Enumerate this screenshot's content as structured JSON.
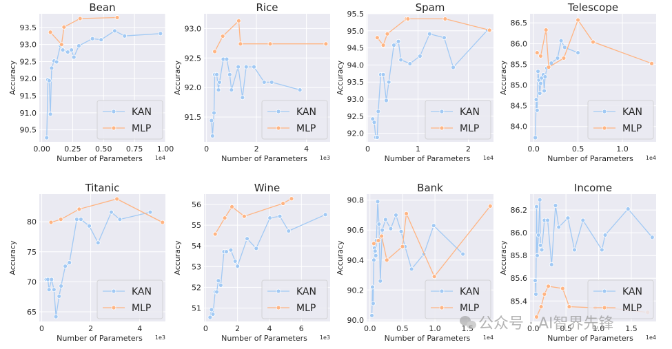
{
  "figure": {
    "colors": {
      "KAN": "#a1c9f4",
      "MLP": "#ffb482",
      "panel_bg": "#eaeaf2",
      "grid": "#ffffff",
      "text": "#262626"
    },
    "watermark": "公众号 · AI智界先锋"
  },
  "chart_data": [
    {
      "type": "line",
      "title": "Bean",
      "xlabel": "Number of Parameters",
      "ylabel": "Accuracy",
      "x_offset_label": "1e4",
      "xlim": [
        -0.02,
        1.0
      ],
      "ylim": [
        90.15,
        93.9
      ],
      "xticks": [
        0.0,
        0.25,
        0.5,
        0.75,
        1.0
      ],
      "xtick_labels": [
        "0.00",
        "0.25",
        "0.50",
        "0.75",
        "1.00"
      ],
      "yticks": [
        90.5,
        91.0,
        91.5,
        92.0,
        92.5,
        93.0,
        93.5
      ],
      "ytick_labels": [
        "90.5",
        "91.0",
        "91.5",
        "92.0",
        "92.5",
        "93.0",
        "93.5"
      ],
      "legend": [
        "KAN",
        "MLP"
      ],
      "legend_position": "lower-right",
      "grid": true,
      "series": [
        {
          "name": "KAN",
          "x": [
            0.04,
            0.05,
            0.06,
            0.07,
            0.08,
            0.1,
            0.12,
            0.15,
            0.17,
            0.21,
            0.24,
            0.26,
            0.3,
            0.41,
            0.48,
            0.59,
            0.67,
            0.96
          ],
          "y": [
            90.27,
            91.97,
            91.94,
            90.96,
            92.31,
            92.52,
            92.49,
            92.96,
            92.84,
            92.78,
            92.84,
            92.63,
            92.96,
            93.17,
            93.14,
            93.4,
            93.25,
            93.32
          ]
        },
        {
          "name": "MLP",
          "x": [
            0.07,
            0.16,
            0.18,
            0.31,
            0.61
          ],
          "y": [
            93.36,
            93.0,
            93.51,
            93.76,
            93.79
          ]
        }
      ]
    },
    {
      "type": "line",
      "title": "Rice",
      "xlabel": "Number of Parameters",
      "ylabel": "Accuracy",
      "x_offset_label": "1e3",
      "xlim": [
        -0.1,
        4.95
      ],
      "ylim": [
        91.08,
        93.25
      ],
      "xticks": [
        0,
        2,
        4
      ],
      "xtick_labels": [
        "0",
        "2",
        "4"
      ],
      "yticks": [
        91.5,
        92.0,
        92.5,
        93.0
      ],
      "ytick_labels": [
        "91.5",
        "92.0",
        "92.5",
        "93.0"
      ],
      "legend": [
        "KAN",
        "MLP"
      ],
      "legend_position": "lower-right",
      "grid": true,
      "series": [
        {
          "name": "KAN",
          "x": [
            0.2,
            0.24,
            0.3,
            0.33,
            0.41,
            0.48,
            0.52,
            0.67,
            0.81,
            0.93,
            1.0,
            1.27,
            1.44,
            1.59,
            1.9,
            2.31,
            2.61,
            3.74
          ],
          "y": [
            91.44,
            91.18,
            91.57,
            92.22,
            92.22,
            91.96,
            92.09,
            92.48,
            92.48,
            92.22,
            91.96,
            92.35,
            91.83,
            92.35,
            92.35,
            92.09,
            92.09,
            91.96
          ]
        },
        {
          "name": "MLP",
          "x": [
            0.33,
            0.65,
            1.29,
            1.36,
            2.55,
            4.78
          ],
          "y": [
            92.61,
            92.87,
            93.13,
            92.74,
            92.74,
            92.74
          ]
        }
      ]
    },
    {
      "type": "line",
      "title": "Spam",
      "xlabel": "Number of Parameters",
      "ylabel": "Accuracy",
      "x_offset_label": "1e4",
      "xlim": [
        -0.02,
        2.5
      ],
      "ylim": [
        91.75,
        95.5
      ],
      "xticks": [
        0,
        1,
        2
      ],
      "xtick_labels": [
        "0",
        "1",
        "2"
      ],
      "yticks": [
        92.0,
        92.5,
        93.0,
        93.5,
        94.0,
        94.5,
        95.0,
        95.5
      ],
      "ytick_labels": [
        "92.0",
        "92.5",
        "93.0",
        "93.5",
        "94.0",
        "94.5",
        "95.0",
        "95.5"
      ],
      "legend": [
        "KAN",
        "MLP"
      ],
      "legend_position": "lower-right",
      "grid": true,
      "series": [
        {
          "name": "KAN",
          "x": [
            0.1,
            0.13,
            0.16,
            0.19,
            0.21,
            0.26,
            0.31,
            0.37,
            0.42,
            0.52,
            0.61,
            0.66,
            0.84,
            1.04,
            1.23,
            1.52,
            1.7,
            2.38
          ],
          "y": [
            92.42,
            92.32,
            91.88,
            91.88,
            92.64,
            93.72,
            93.72,
            92.96,
            93.5,
            94.58,
            94.69,
            94.15,
            94.04,
            94.26,
            94.91,
            94.8,
            93.93,
            95.02
          ]
        },
        {
          "name": "MLP",
          "x": [
            0.19,
            0.31,
            0.39,
            0.77,
            0.8,
            1.54,
            2.42
          ],
          "y": [
            94.8,
            94.58,
            94.91,
            95.35,
            95.35,
            95.35,
            95.02
          ]
        }
      ]
    },
    {
      "type": "line",
      "title": "Telescope",
      "xlabel": "Number of Parameters",
      "ylabel": "Accuracy",
      "x_offset_label": "1e4",
      "xlim": [
        -0.04,
        1.38
      ],
      "ylim": [
        83.63,
        86.72
      ],
      "xticks": [
        0.0,
        0.5,
        1.0
      ],
      "xtick_labels": [
        "0.0",
        "0.5",
        "1.0"
      ],
      "yticks": [
        84.0,
        84.5,
        85.0,
        85.5,
        86.0,
        86.5
      ],
      "ytick_labels": [
        "84.0",
        "84.5",
        "85.0",
        "85.5",
        "86.0",
        "86.5"
      ],
      "legend": [
        "KAN",
        "MLP"
      ],
      "legend_position": "lower-right",
      "grid": true,
      "series": [
        {
          "name": "KAN",
          "x": [
            0.02,
            0.03,
            0.04,
            0.05,
            0.06,
            0.07,
            0.08,
            0.09,
            0.11,
            0.12,
            0.13,
            0.15,
            0.2,
            0.27,
            0.31,
            0.35,
            0.5
          ],
          "y": [
            83.73,
            84.65,
            84.39,
            85.33,
            85.12,
            84.8,
            85.04,
            85.17,
            85.25,
            84.86,
            85.2,
            85.41,
            85.53,
            85.65,
            86.07,
            85.91,
            85.78
          ]
        },
        {
          "name": "MLP",
          "x": [
            0.04,
            0.08,
            0.14,
            0.17,
            0.34,
            0.5,
            0.67,
            1.33
          ],
          "y": [
            85.78,
            85.7,
            86.33,
            85.43,
            85.65,
            86.57,
            86.04,
            85.52
          ]
        }
      ]
    },
    {
      "type": "line",
      "title": "Titanic",
      "xlabel": "Number of Parameters",
      "ylabel": "Accuracy",
      "x_offset_label": "1e3",
      "xlim": [
        -0.1,
        5.05
      ],
      "ylim": [
        63.4,
        84.6
      ],
      "xticks": [
        0,
        2,
        4
      ],
      "xtick_labels": [
        "0",
        "2",
        "4"
      ],
      "yticks": [
        65,
        70,
        75,
        80
      ],
      "ytick_labels": [
        "65",
        "70",
        "75",
        "80"
      ],
      "legend": [
        "KAN",
        "MLP"
      ],
      "legend_position": "lower-right",
      "grid": true,
      "series": [
        {
          "name": "KAN",
          "x": [
            0.18,
            0.25,
            0.3,
            0.4,
            0.5,
            0.58,
            0.71,
            0.79,
            0.96,
            1.13,
            1.43,
            1.6,
            1.94,
            2.3,
            2.84,
            3.19,
            4.43
          ],
          "y": [
            70.4,
            70.4,
            68.7,
            70.4,
            68.7,
            64.2,
            67.6,
            69.3,
            72.6,
            73.2,
            80.4,
            80.4,
            79.3,
            76.5,
            81.6,
            80.4,
            81.6
          ]
        },
        {
          "name": "MLP",
          "x": [
            0.38,
            0.78,
            1.53,
            3.07,
            4.93
          ],
          "y": [
            79.9,
            80.4,
            82.1,
            83.8,
            79.9
          ]
        }
      ]
    },
    {
      "type": "line",
      "title": "Wine",
      "xlabel": "Number of Parameters",
      "ylabel": "Accuracy",
      "x_offset_label": "1e3",
      "xlim": [
        -0.1,
        7.8
      ],
      "ylim": [
        50.35,
        56.5
      ],
      "xticks": [
        0,
        2,
        4,
        6
      ],
      "xtick_labels": [
        "0",
        "2",
        "4",
        "6"
      ],
      "yticks": [
        51,
        52,
        53,
        54,
        55,
        56
      ],
      "ytick_labels": [
        "51",
        "52",
        "53",
        "54",
        "55",
        "56"
      ],
      "legend": [
        "KAN",
        "MLP"
      ],
      "legend_position": "lower-right",
      "grid": true,
      "series": [
        {
          "name": "KAN",
          "x": [
            0.28,
            0.37,
            0.46,
            0.6,
            0.7,
            0.8,
            0.95,
            1.15,
            1.3,
            1.58,
            1.85,
            2.0,
            2.6,
            3.17,
            4.03,
            4.65,
            5.2,
            7.5
          ],
          "y": [
            50.55,
            50.92,
            50.7,
            51.78,
            51.78,
            52.32,
            52.1,
            53.72,
            53.72,
            53.8,
            53.26,
            53.02,
            54.35,
            53.88,
            55.35,
            55.43,
            54.72,
            55.51
          ]
        },
        {
          "name": "MLP",
          "x": [
            0.6,
            1.2,
            1.65,
            2.42,
            4.85,
            5.38
          ],
          "y": [
            54.57,
            55.35,
            55.89,
            55.43,
            56.05,
            56.28
          ]
        }
      ]
    },
    {
      "type": "line",
      "title": "Bank",
      "xlabel": "Number of Parameters",
      "ylabel": "Accuracy",
      "x_offset_label": "1e4",
      "xlim": [
        -0.05,
        1.9
      ],
      "ylim": [
        89.99,
        90.84
      ],
      "xticks": [
        0.0,
        0.5,
        1.0,
        1.5
      ],
      "xtick_labels": [
        "0.0",
        "0.5",
        "1.0",
        "1.5"
      ],
      "yticks": [
        90.0,
        90.2,
        90.4,
        90.6,
        90.8
      ],
      "ytick_labels": [
        "90.0",
        "90.2",
        "90.4",
        "90.6",
        "90.8"
      ],
      "legend": [
        "KAN",
        "MLP"
      ],
      "legend_position": "lower-right",
      "grid": true,
      "series": [
        {
          "name": "KAN",
          "x": [
            0.03,
            0.04,
            0.05,
            0.06,
            0.07,
            0.08,
            0.09,
            0.1,
            0.12,
            0.14,
            0.16,
            0.19,
            0.24,
            0.32,
            0.4,
            0.48,
            0.54,
            0.64,
            0.83,
            0.98,
            1.43
          ],
          "y": [
            90.03,
            90.22,
            90.11,
            90.4,
            90.48,
            90.46,
            90.43,
            90.53,
            90.79,
            90.64,
            90.26,
            90.6,
            90.67,
            90.61,
            90.7,
            90.59,
            90.49,
            90.34,
            90.44,
            90.63,
            90.44
          ]
        },
        {
          "name": "MLP",
          "x": [
            0.06,
            0.13,
            0.18,
            0.26,
            0.5,
            0.56,
            0.99,
            1.85
          ],
          "y": [
            90.51,
            90.53,
            90.56,
            90.4,
            90.49,
            90.71,
            90.29,
            90.76
          ]
        }
      ]
    },
    {
      "type": "line",
      "title": "Income",
      "xlabel": "Number of Parameters",
      "ylabel": "Accuracy",
      "x_offset_label": "1e4",
      "xlim": [
        -0.05,
        1.88
      ],
      "ylim": [
        85.22,
        86.34
      ],
      "xticks": [
        0.0,
        0.5,
        1.0,
        1.5
      ],
      "xtick_labels": [
        "0.0",
        "0.5",
        "1.0",
        "1.5"
      ],
      "yticks": [
        85.4,
        85.6,
        85.8,
        86.0,
        86.2
      ],
      "ytick_labels": [
        "85.4",
        "85.6",
        "85.8",
        "86.0",
        "86.2"
      ],
      "legend": [
        "KAN",
        "MLP"
      ],
      "legend_position": "lower-right",
      "grid": true,
      "series": [
        {
          "name": "KAN",
          "x": [
            0.03,
            0.04,
            0.05,
            0.06,
            0.08,
            0.1,
            0.11,
            0.13,
            0.17,
            0.22,
            0.28,
            0.34,
            0.39,
            0.53,
            0.63,
            0.76,
            1.05,
            1.1,
            1.45,
            1.82
          ],
          "y": [
            85.58,
            85.46,
            86.23,
            85.8,
            85.98,
            86.29,
            85.89,
            85.85,
            86.11,
            86.11,
            85.72,
            86.24,
            86.05,
            86.13,
            85.85,
            86.11,
            85.85,
            85.98,
            86.21,
            85.96
          ]
        },
        {
          "name": "MLP",
          "x": [
            0.05,
            0.12,
            0.17,
            0.23,
            0.45,
            0.55,
            0.95,
            1.12,
            1.75
          ],
          "y": [
            85.26,
            85.35,
            85.46,
            85.53,
            85.51,
            85.35,
            85.34,
            85.34,
            85.3
          ]
        }
      ]
    }
  ]
}
